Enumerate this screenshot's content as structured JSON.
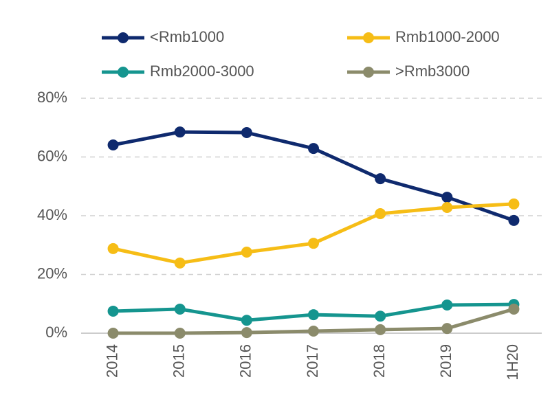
{
  "chart_data": {
    "type": "line",
    "categories": [
      "2014",
      "2015",
      "2016",
      "2017",
      "2018",
      "2019",
      "1H20"
    ],
    "series": [
      {
        "name": "<Rmb1000",
        "color": "#0f2a6e",
        "values": [
          64.1,
          68.5,
          68.3,
          62.9,
          52.6,
          46.3,
          38.4
        ]
      },
      {
        "name": "Rmb1000-2000",
        "color": "#f6bd16",
        "values": [
          28.8,
          23.9,
          27.6,
          30.6,
          40.7,
          42.8,
          44.0
        ]
      },
      {
        "name": "Rmb2000-3000",
        "color": "#15958f",
        "values": [
          7.5,
          8.2,
          4.4,
          6.3,
          5.8,
          9.6,
          9.8
        ]
      },
      {
        "name": ">Rmb3000",
        "color": "#8b8b6b",
        "values": [
          0,
          0,
          0.2,
          0.7,
          1.2,
          1.6,
          8.2
        ]
      }
    ],
    "ylim": [
      0,
      80
    ],
    "yticks": [
      {
        "value": 0,
        "label": "0%"
      },
      {
        "value": 20,
        "label": "20%"
      },
      {
        "value": 40,
        "label": "40%"
      },
      {
        "value": 60,
        "label": "60%"
      },
      {
        "value": 80,
        "label": "80%"
      }
    ],
    "grid": true
  }
}
